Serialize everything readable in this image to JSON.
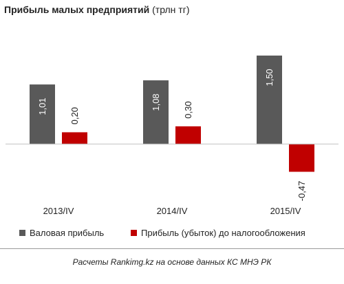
{
  "title": {
    "main": "Прибыль малых предприятий",
    "unit": "(трлн тг)"
  },
  "chart_data": {
    "type": "bar",
    "categories": [
      "2013/IV",
      "2014/IV",
      "2015/IV"
    ],
    "series": [
      {
        "name": "Валовая прибыль",
        "values": [
          1.01,
          1.08,
          1.5
        ],
        "labels": [
          "1,01",
          "1,08",
          "1,50"
        ],
        "color": "#595959"
      },
      {
        "name": "Прибыль (убыток) до налогообложения",
        "values": [
          0.2,
          0.3,
          -0.47
        ],
        "labels": [
          "0,20",
          "0,30",
          "-0,47"
        ],
        "color": "#c00000"
      }
    ],
    "ylim": [
      -0.6,
      1.7
    ],
    "grid": false,
    "legend": "bottom",
    "xlabel": "",
    "ylabel": ""
  },
  "source": "Расчеты Rankimg.kz на основе данных КС МНЭ РК"
}
